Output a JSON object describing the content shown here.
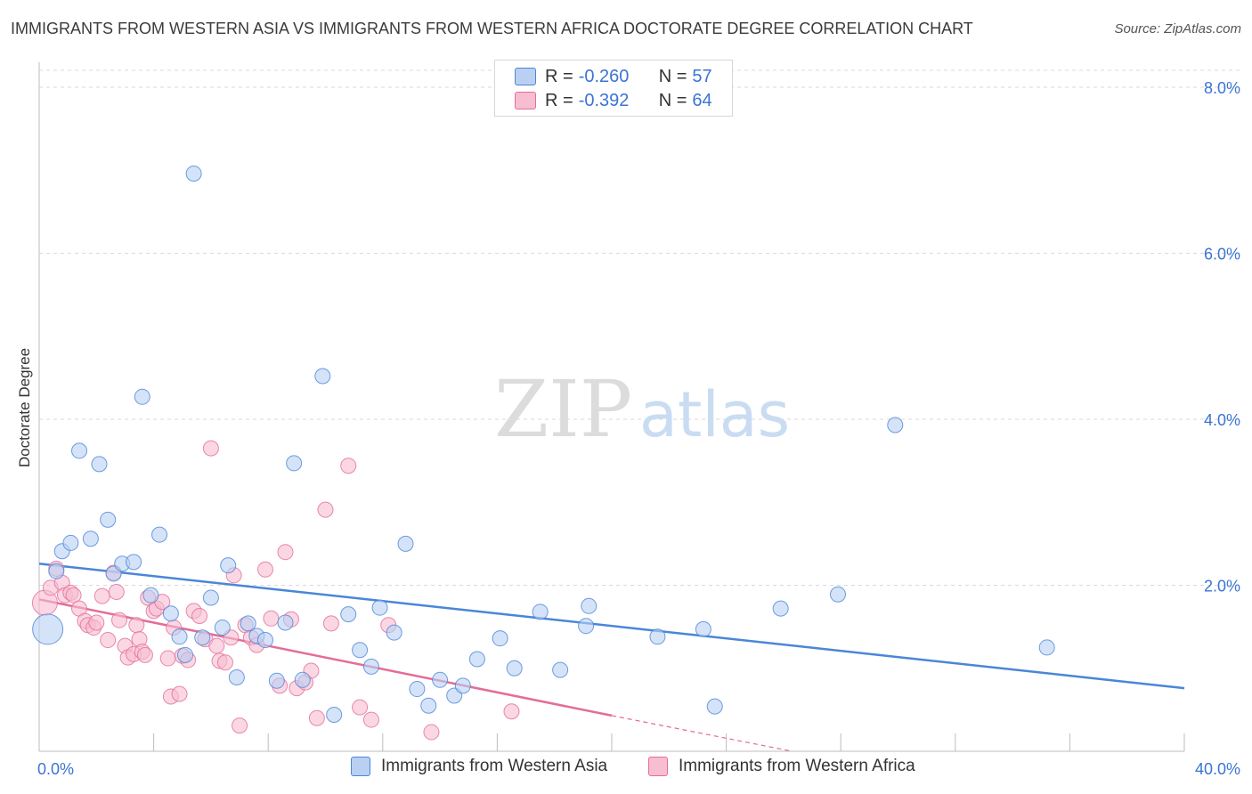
{
  "title": "IMMIGRANTS FROM WESTERN ASIA VS IMMIGRANTS FROM WESTERN AFRICA DOCTORATE DEGREE CORRELATION CHART",
  "source": "Source: ZipAtlas.com",
  "watermark": {
    "zip": "ZIP",
    "atlas": "atlas"
  },
  "stats": [
    {
      "r_label": "R = ",
      "r_value": "-0.260",
      "n_label": "N = ",
      "n_value": "57"
    },
    {
      "r_label": "R = ",
      "r_value": "-0.392",
      "n_label": "N = ",
      "n_value": "64"
    }
  ],
  "chart_data": {
    "type": "scatter",
    "title": "IMMIGRANTS FROM WESTERN ASIA VS IMMIGRANTS FROM WESTERN AFRICA DOCTORATE DEGREE CORRELATION CHART",
    "xlabel": "",
    "ylabel": "Doctorate Degree",
    "xlim": [
      0,
      40
    ],
    "ylim": [
      0,
      8.3
    ],
    "x_tick_labels": [
      "0.0%",
      "40.0%"
    ],
    "y_ticks": [
      2,
      4,
      6,
      8
    ],
    "y_tick_labels": [
      "2.0%",
      "4.0%",
      "6.0%",
      "8.0%"
    ],
    "colors": {
      "blue": "#4a86d8",
      "blue_fill": "#b9d0f3",
      "pink": "#e46d98",
      "pink_fill": "#f7bdd0",
      "tick_label": "#3b74d4"
    },
    "series": [
      {
        "name": "Immigrants from Western Asia",
        "color": "blue",
        "trend": {
          "x0": 0.0,
          "y0": 2.26,
          "x1": 40.0,
          "y1": 0.76
        },
        "points": [
          [
            0.3,
            1.47
          ],
          [
            0.6,
            2.17
          ],
          [
            0.8,
            2.41
          ],
          [
            1.1,
            2.51
          ],
          [
            1.4,
            3.62
          ],
          [
            1.8,
            2.56
          ],
          [
            2.1,
            3.46
          ],
          [
            2.4,
            2.79
          ],
          [
            2.6,
            2.14
          ],
          [
            2.9,
            2.26
          ],
          [
            3.3,
            2.28
          ],
          [
            3.6,
            4.27
          ],
          [
            3.9,
            1.88
          ],
          [
            4.2,
            2.61
          ],
          [
            4.6,
            1.66
          ],
          [
            4.9,
            1.38
          ],
          [
            5.1,
            1.16
          ],
          [
            5.4,
            6.96
          ],
          [
            5.7,
            1.37
          ],
          [
            6.0,
            1.85
          ],
          [
            6.4,
            1.49
          ],
          [
            6.6,
            2.24
          ],
          [
            6.9,
            0.89
          ],
          [
            7.3,
            1.54
          ],
          [
            7.6,
            1.39
          ],
          [
            7.9,
            1.34
          ],
          [
            8.3,
            0.85
          ],
          [
            8.6,
            1.55
          ],
          [
            8.9,
            3.47
          ],
          [
            9.2,
            0.86
          ],
          [
            9.9,
            4.52
          ],
          [
            10.3,
            0.44
          ],
          [
            10.8,
            1.65
          ],
          [
            11.2,
            1.22
          ],
          [
            11.6,
            1.02
          ],
          [
            11.9,
            1.73
          ],
          [
            12.4,
            1.43
          ],
          [
            12.8,
            2.5
          ],
          [
            13.2,
            0.75
          ],
          [
            13.6,
            0.55
          ],
          [
            14.0,
            0.86
          ],
          [
            14.5,
            0.67
          ],
          [
            14.8,
            0.79
          ],
          [
            15.3,
            1.11
          ],
          [
            16.1,
            1.36
          ],
          [
            16.6,
            1.0
          ],
          [
            17.5,
            1.68
          ],
          [
            18.2,
            0.98
          ],
          [
            19.1,
            1.51
          ],
          [
            19.2,
            1.75
          ],
          [
            21.6,
            1.38
          ],
          [
            23.2,
            1.47
          ],
          [
            23.6,
            0.54
          ],
          [
            25.9,
            1.72
          ],
          [
            27.9,
            1.89
          ],
          [
            29.9,
            3.93
          ],
          [
            35.2,
            1.25
          ]
        ]
      },
      {
        "name": "Immigrants from Western Africa",
        "color": "pink",
        "trend": {
          "x0": 0.0,
          "y0": 1.83,
          "x1": 20.0,
          "y1": 0.43,
          "dash_x1": 26.3,
          "dash_y1": 0.0
        },
        "points": [
          [
            0.2,
            1.79
          ],
          [
            0.4,
            1.97
          ],
          [
            0.6,
            2.2
          ],
          [
            0.8,
            2.03
          ],
          [
            0.9,
            1.88
          ],
          [
            1.1,
            1.91
          ],
          [
            1.2,
            1.88
          ],
          [
            1.4,
            1.72
          ],
          [
            1.6,
            1.57
          ],
          [
            1.7,
            1.52
          ],
          [
            1.9,
            1.49
          ],
          [
            2.0,
            1.55
          ],
          [
            2.2,
            1.87
          ],
          [
            2.4,
            1.34
          ],
          [
            2.6,
            2.15
          ],
          [
            2.7,
            1.92
          ],
          [
            2.8,
            1.58
          ],
          [
            3.0,
            1.27
          ],
          [
            3.1,
            1.13
          ],
          [
            3.3,
            1.17
          ],
          [
            3.4,
            1.52
          ],
          [
            3.5,
            1.35
          ],
          [
            3.6,
            1.2
          ],
          [
            3.7,
            1.16
          ],
          [
            3.8,
            1.85
          ],
          [
            4.0,
            1.69
          ],
          [
            4.1,
            1.72
          ],
          [
            4.3,
            1.8
          ],
          [
            4.5,
            1.12
          ],
          [
            4.6,
            0.66
          ],
          [
            4.7,
            1.49
          ],
          [
            4.9,
            0.69
          ],
          [
            5.0,
            1.15
          ],
          [
            5.2,
            1.1
          ],
          [
            5.4,
            1.69
          ],
          [
            5.6,
            1.63
          ],
          [
            5.8,
            1.35
          ],
          [
            6.0,
            3.65
          ],
          [
            6.2,
            1.27
          ],
          [
            6.3,
            1.09
          ],
          [
            6.5,
            1.07
          ],
          [
            6.7,
            1.37
          ],
          [
            6.8,
            2.12
          ],
          [
            7.0,
            0.31
          ],
          [
            7.2,
            1.52
          ],
          [
            7.4,
            1.37
          ],
          [
            7.6,
            1.28
          ],
          [
            7.9,
            2.19
          ],
          [
            8.1,
            1.6
          ],
          [
            8.4,
            0.79
          ],
          [
            8.6,
            2.4
          ],
          [
            8.8,
            1.59
          ],
          [
            9.0,
            0.76
          ],
          [
            9.3,
            0.83
          ],
          [
            9.5,
            0.97
          ],
          [
            9.7,
            0.4
          ],
          [
            10.0,
            2.91
          ],
          [
            10.2,
            1.54
          ],
          [
            10.8,
            3.44
          ],
          [
            11.2,
            0.53
          ],
          [
            11.6,
            0.38
          ],
          [
            12.2,
            1.52
          ],
          [
            13.7,
            0.23
          ],
          [
            16.5,
            0.48
          ]
        ]
      }
    ]
  }
}
